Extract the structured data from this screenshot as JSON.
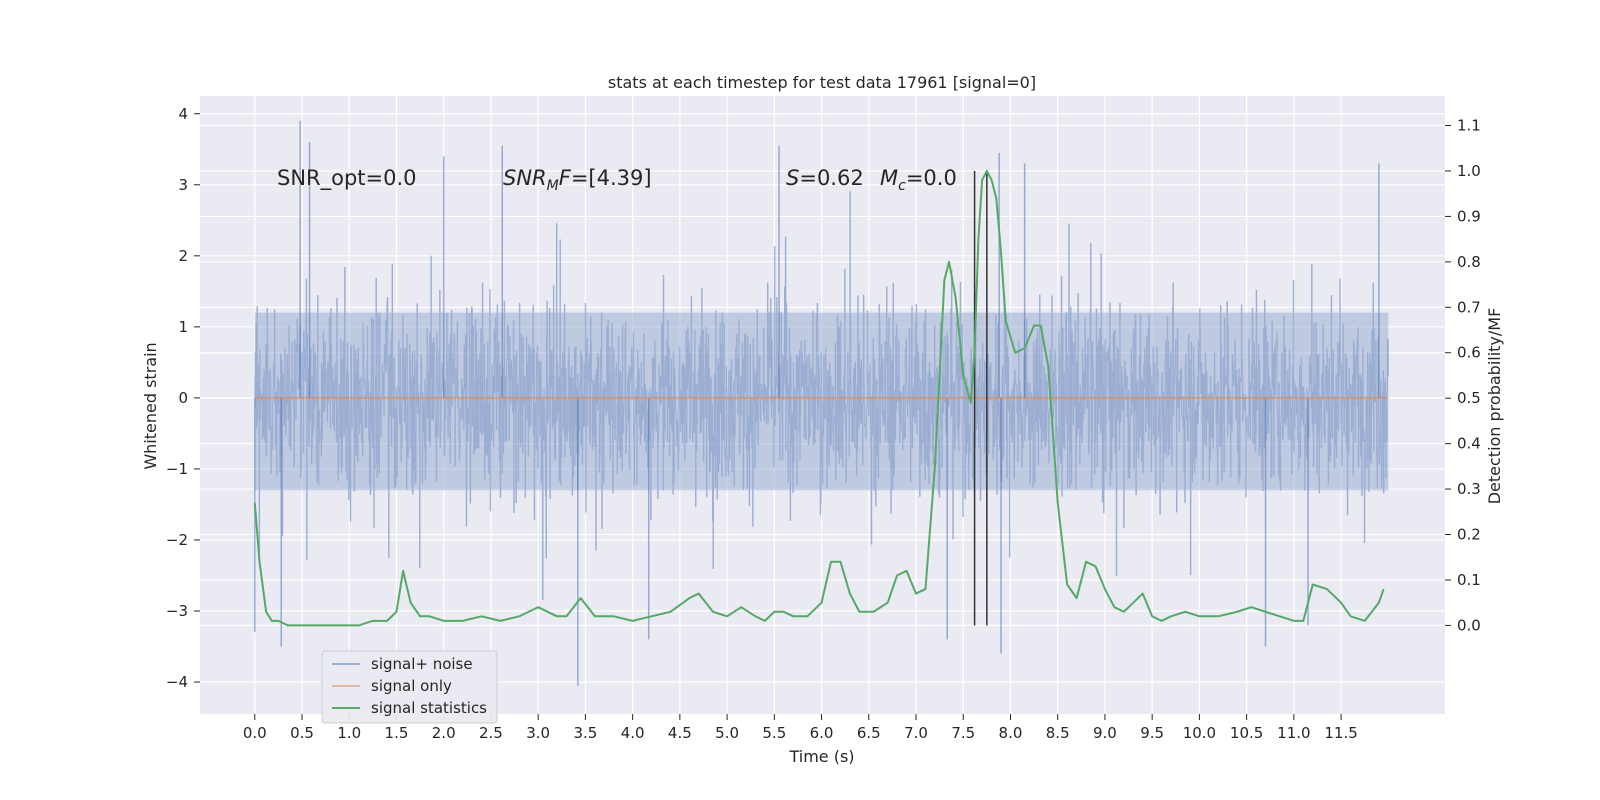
{
  "chart_data": {
    "type": "line",
    "title": "stats at each timestep for test data 17961 [signal=0]",
    "xlabel": "Time (s)",
    "ylabel_left": "Whitened strain",
    "ylabel_right": "Detection probability/MF",
    "xlim": [
      -0.58,
      12.6
    ],
    "ylim_left": [
      -4.45,
      4.25
    ],
    "ylim_right": [
      -0.195,
      1.165
    ],
    "x_ticks": [
      0.0,
      0.5,
      1.0,
      1.5,
      2.0,
      2.5,
      3.0,
      3.5,
      4.0,
      4.5,
      5.0,
      5.5,
      6.0,
      6.5,
      7.0,
      7.5,
      8.0,
      8.5,
      9.0,
      9.5,
      10.0,
      10.5,
      11.0,
      11.5
    ],
    "x_tick_labels": [
      "0.0",
      "0.5",
      "1.0",
      "1.5",
      "2.0",
      "2.5",
      "3.0",
      "3.5",
      "4.0",
      "4.5",
      "5.0",
      "5.5",
      "6.0",
      "6.5",
      "7.0",
      "7.5",
      "8.0",
      "8.5",
      "9.0",
      "9.5",
      "10.0",
      "10.5",
      "11.0",
      "11.5"
    ],
    "y_left_ticks": [
      -4,
      -3,
      -2,
      -1,
      0,
      1,
      2,
      3,
      4
    ],
    "y_left_tick_labels": [
      "−4",
      "−3",
      "−2",
      "−1",
      "0",
      "1",
      "2",
      "3",
      "4"
    ],
    "y_right_ticks": [
      0.0,
      0.1,
      0.2,
      0.3,
      0.4,
      0.5,
      0.6,
      0.7,
      0.8,
      0.9,
      1.0,
      1.1
    ],
    "y_right_tick_labels": [
      "0.0",
      "0.1",
      "0.2",
      "0.3",
      "0.4",
      "0.5",
      "0.6",
      "0.7",
      "0.8",
      "0.9",
      "1.0",
      "1.1"
    ],
    "grid": true,
    "legend": {
      "placement": "lower-left",
      "entries": [
        "signal+ noise",
        "signal only",
        "signal statistics"
      ]
    },
    "annotations": {
      "snr_opt": "SNR_opt=0.0",
      "snr_mf_italic": "SNR",
      "snr_mf_sub": "M",
      "snr_mf_italic2": "F",
      "snr_mf_value": "=[4.39]",
      "s_label": "S",
      "s_value": "=0.62",
      "mc_label": "M",
      "mc_sub": "c",
      "mc_value": "=0.0"
    },
    "noise": {
      "x_range": [
        0.0,
        12.0
      ],
      "envelope_core": [
        -1.3,
        1.2
      ],
      "spikes": [
        {
          "x": 0.48,
          "y": 3.9
        },
        {
          "x": 0.58,
          "y": 3.6
        },
        {
          "x": 2.0,
          "y": 3.4
        },
        {
          "x": 2.62,
          "y": 3.55
        },
        {
          "x": 5.55,
          "y": 3.55
        },
        {
          "x": 7.88,
          "y": 3.45
        },
        {
          "x": 8.15,
          "y": 3.3
        },
        {
          "x": 11.9,
          "y": 3.3
        },
        {
          "x": 3.42,
          "y": -4.05
        },
        {
          "x": 4.17,
          "y": -3.4
        },
        {
          "x": 7.9,
          "y": -3.6
        },
        {
          "x": 7.33,
          "y": -3.4
        },
        {
          "x": 0.28,
          "y": -3.5
        },
        {
          "x": 0.0,
          "y": -3.3
        },
        {
          "x": 10.7,
          "y": -3.5
        },
        {
          "x": 11.15,
          "y": -3.2
        }
      ]
    },
    "series": [
      {
        "name": "signal statistics",
        "color": "#55a868",
        "axis": "right",
        "x": [
          0.0,
          0.05,
          0.12,
          0.18,
          0.25,
          0.35,
          0.5,
          0.7,
          0.9,
          1.1,
          1.25,
          1.4,
          1.5,
          1.57,
          1.65,
          1.75,
          1.85,
          2.0,
          2.2,
          2.4,
          2.6,
          2.8,
          2.9,
          3.0,
          3.2,
          3.3,
          3.45,
          3.6,
          3.8,
          4.0,
          4.2,
          4.4,
          4.6,
          4.7,
          4.85,
          5.0,
          5.15,
          5.3,
          5.4,
          5.5,
          5.6,
          5.7,
          5.85,
          6.0,
          6.1,
          6.2,
          6.3,
          6.4,
          6.55,
          6.7,
          6.8,
          6.9,
          7.0,
          7.1,
          7.2,
          7.3,
          7.35,
          7.42,
          7.5,
          7.58,
          7.62,
          7.66,
          7.7,
          7.75,
          7.8,
          7.85,
          7.9,
          7.95,
          8.05,
          8.15,
          8.25,
          8.32,
          8.4,
          8.5,
          8.6,
          8.7,
          8.8,
          8.9,
          9.0,
          9.1,
          9.2,
          9.3,
          9.4,
          9.5,
          9.6,
          9.7,
          9.85,
          10.0,
          10.2,
          10.4,
          10.55,
          10.7,
          10.85,
          11.0,
          11.1,
          11.2,
          11.35,
          11.5,
          11.6,
          11.75,
          11.9,
          11.95
        ],
        "values": [
          0.27,
          0.14,
          0.03,
          0.01,
          0.01,
          0.0,
          0.0,
          0.0,
          0.0,
          0.0,
          0.01,
          0.01,
          0.03,
          0.12,
          0.05,
          0.02,
          0.02,
          0.01,
          0.01,
          0.02,
          0.01,
          0.02,
          0.03,
          0.04,
          0.02,
          0.02,
          0.06,
          0.02,
          0.02,
          0.01,
          0.02,
          0.03,
          0.06,
          0.07,
          0.03,
          0.02,
          0.04,
          0.02,
          0.01,
          0.03,
          0.03,
          0.02,
          0.02,
          0.05,
          0.14,
          0.14,
          0.07,
          0.03,
          0.03,
          0.05,
          0.11,
          0.12,
          0.07,
          0.08,
          0.35,
          0.76,
          0.8,
          0.72,
          0.55,
          0.49,
          0.6,
          0.85,
          0.98,
          1.0,
          0.98,
          0.94,
          0.82,
          0.67,
          0.6,
          0.61,
          0.66,
          0.66,
          0.57,
          0.27,
          0.09,
          0.06,
          0.14,
          0.13,
          0.08,
          0.04,
          0.03,
          0.05,
          0.07,
          0.02,
          0.01,
          0.02,
          0.03,
          0.02,
          0.02,
          0.03,
          0.04,
          0.03,
          0.02,
          0.01,
          0.01,
          0.09,
          0.08,
          0.05,
          0.02,
          0.01,
          0.05,
          0.08
        ]
      },
      {
        "name": "signal only",
        "color": "#dd8452",
        "axis": "left",
        "x": [
          0.0,
          12.0
        ],
        "values": [
          0.0,
          0.0
        ]
      }
    ],
    "vertical_markers": [
      7.62,
      7.75
    ]
  }
}
